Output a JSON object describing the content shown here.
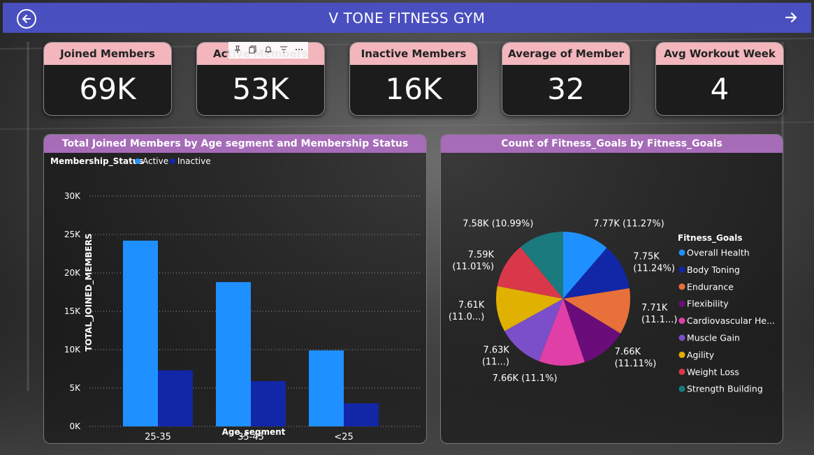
{
  "header": {
    "title": "V TONE FITNESS GYM"
  },
  "kpis": [
    {
      "label": "Joined Members",
      "value": "69K"
    },
    {
      "label": "Active Members",
      "value": "53K"
    },
    {
      "label": "Inactive Members",
      "value": "16K"
    },
    {
      "label": "Average of Member",
      "value": "32"
    },
    {
      "label": "Avg Workout Week",
      "value": "4"
    }
  ],
  "bar_panel": {
    "title": "Total Joined Members by Age segment and Membership Status",
    "legend_title": "Membership_Status",
    "legend": [
      {
        "name": "Active",
        "color": "#1e90ff"
      },
      {
        "name": "Inactive",
        "color": "#1226a8"
      }
    ]
  },
  "pie_panel": {
    "title": "Count of Fitness_Goals by Fitness_Goals",
    "legend_title": "Fitness_Goals"
  },
  "chart_data": [
    {
      "type": "bar",
      "title": "Total Joined Members by Age segment and Membership Status",
      "xlabel": "Age_segment",
      "ylabel": "TOTAL_JOINED_MEMBERS",
      "categories": [
        "25-35",
        "35-45",
        "<25"
      ],
      "ylim": [
        0,
        30000
      ],
      "yticks": [
        "0K",
        "5K",
        "10K",
        "15K",
        "20K",
        "25K",
        "30K"
      ],
      "grid": true,
      "legend_position": "top-left",
      "series": [
        {
          "name": "Active",
          "color": "#1e90ff",
          "values": [
            24200,
            18800,
            9900
          ]
        },
        {
          "name": "Inactive",
          "color": "#1226a8",
          "values": [
            7300,
            5900,
            3000
          ]
        }
      ]
    },
    {
      "type": "pie",
      "title": "Count of Fitness_Goals by Fitness_Goals",
      "legend_position": "right",
      "slices": [
        {
          "name": "Overall Health",
          "value": 7770,
          "label": "7.77K (11.27%)",
          "color": "#1e90ff"
        },
        {
          "name": "Body Toning",
          "value": 7750,
          "label": "7.75K (11.24%)",
          "color": "#1226a8"
        },
        {
          "name": "Endurance",
          "value": 7710,
          "label": "7.71K (11.1...)",
          "color": "#e8703a"
        },
        {
          "name": "Flexibility",
          "value": 7660,
          "label": "7.66K (11.11%)",
          "color": "#6a0d7a"
        },
        {
          "name": "Cardiovascular He...",
          "value": 7660,
          "label": "7.66K (11.1%)",
          "color": "#e03fa8"
        },
        {
          "name": "Muscle Gain",
          "value": 7630,
          "label": "7.63K (11...)",
          "color": "#7b4fc9"
        },
        {
          "name": "Agility",
          "value": 7610,
          "label": "7.61K (11.0...)",
          "color": "#e0b100"
        },
        {
          "name": "Weight Loss",
          "value": 7590,
          "label": "7.59K (11.01%)",
          "color": "#d9384a"
        },
        {
          "name": "Strength Building",
          "value": 7580,
          "label": "7.58K (10.99%)",
          "color": "#1b7a7e"
        }
      ]
    }
  ]
}
